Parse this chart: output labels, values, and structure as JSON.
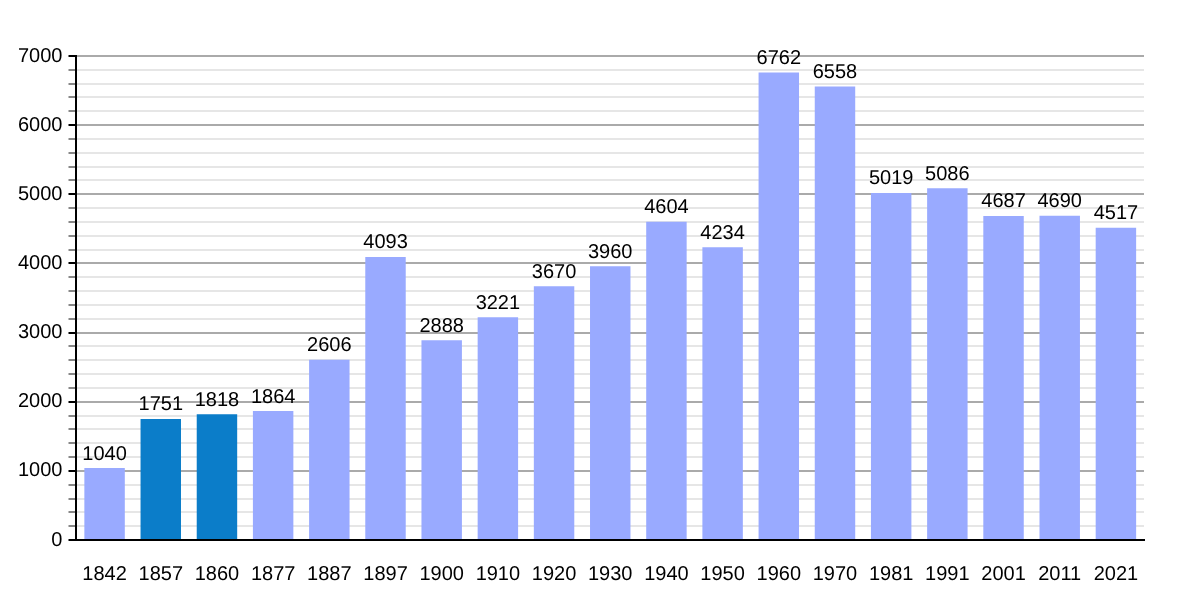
{
  "chart_data": {
    "type": "bar",
    "categories": [
      "1842",
      "1857",
      "1860",
      "1877",
      "1887",
      "1897",
      "1900",
      "1910",
      "1920",
      "1930",
      "1940",
      "1950",
      "1960",
      "1970",
      "1981",
      "1991",
      "2001",
      "2011",
      "2021"
    ],
    "values": [
      1040,
      1751,
      1818,
      1864,
      2606,
      4093,
      2888,
      3221,
      3670,
      3960,
      4604,
      4234,
      6762,
      6558,
      5019,
      5086,
      4687,
      4690,
      4517
    ],
    "colors": [
      "#99aaff",
      "#0b7dc9",
      "#0b7dc9",
      "#99aaff",
      "#99aaff",
      "#99aaff",
      "#99aaff",
      "#99aaff",
      "#99aaff",
      "#99aaff",
      "#99aaff",
      "#99aaff",
      "#99aaff",
      "#99aaff",
      "#99aaff",
      "#99aaff",
      "#99aaff",
      "#99aaff",
      "#99aaff"
    ],
    "ylim": [
      0,
      7000
    ],
    "yticks": [
      0,
      {
        "value": 200,
        "label": null
      },
      {
        "value": 400,
        "label": null
      },
      {
        "value": 600,
        "label": null
      },
      {
        "value": 800,
        "label": null
      },
      1000,
      {
        "value": 1200,
        "label": null
      },
      {
        "value": 1400,
        "label": null
      },
      {
        "value": 1600,
        "label": null
      },
      {
        "value": 1800,
        "label": null
      },
      2000,
      {
        "value": 2200,
        "label": null
      },
      {
        "value": 2400,
        "label": null
      },
      {
        "value": 2600,
        "label": null
      },
      {
        "value": 2800,
        "label": null
      },
      3000,
      {
        "value": 3200,
        "label": null
      },
      {
        "value": 3400,
        "label": null
      },
      {
        "value": 3600,
        "label": null
      },
      {
        "value": 3800,
        "label": null
      },
      4000,
      {
        "value": 4200,
        "label": null
      },
      {
        "value": 4400,
        "label": null
      },
      {
        "value": 4600,
        "label": null
      },
      {
        "value": 4800,
        "label": null
      },
      5000,
      {
        "value": 5200,
        "label": null
      },
      {
        "value": 5400,
        "label": null
      },
      {
        "value": 5600,
        "label": null
      },
      {
        "value": 5800,
        "label": null
      },
      6000,
      {
        "value": 6200,
        "label": null
      },
      {
        "value": 6400,
        "label": null
      },
      {
        "value": 6600,
        "label": null
      },
      {
        "value": 6800,
        "label": null
      },
      7000
    ],
    "grid": "y",
    "data_labels": true,
    "legend": false
  }
}
